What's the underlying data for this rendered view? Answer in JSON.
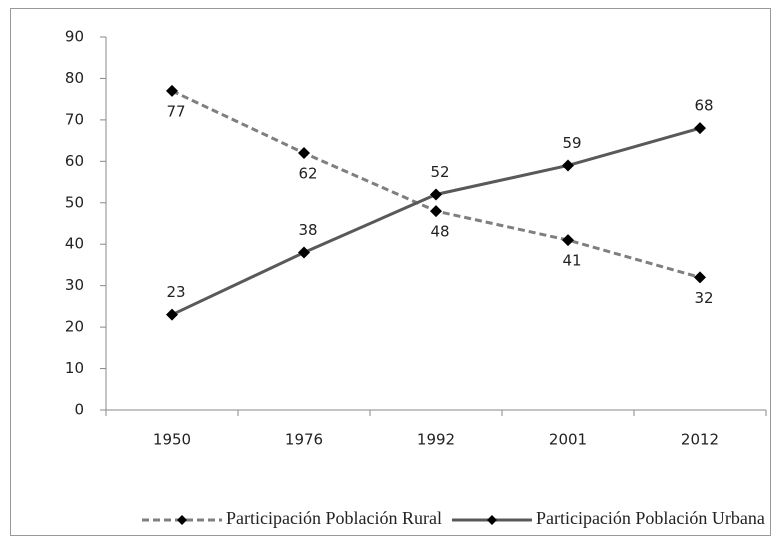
{
  "chart_data": {
    "type": "line",
    "categories": [
      "1950",
      "1976",
      "1992",
      "2001",
      "2012"
    ],
    "series": [
      {
        "name": "Participación Población Rural",
        "color": "#7f7f7f",
        "dash": true,
        "values": [
          77,
          62,
          48,
          41,
          32
        ]
      },
      {
        "name": "Participación Población Urbana",
        "color": "#595959",
        "dash": false,
        "values": [
          23,
          38,
          52,
          59,
          68
        ]
      }
    ],
    "ylim": [
      0,
      90
    ],
    "yticks": [
      0,
      10,
      20,
      30,
      40,
      50,
      60,
      70,
      80,
      90
    ],
    "legend": "bottom"
  }
}
